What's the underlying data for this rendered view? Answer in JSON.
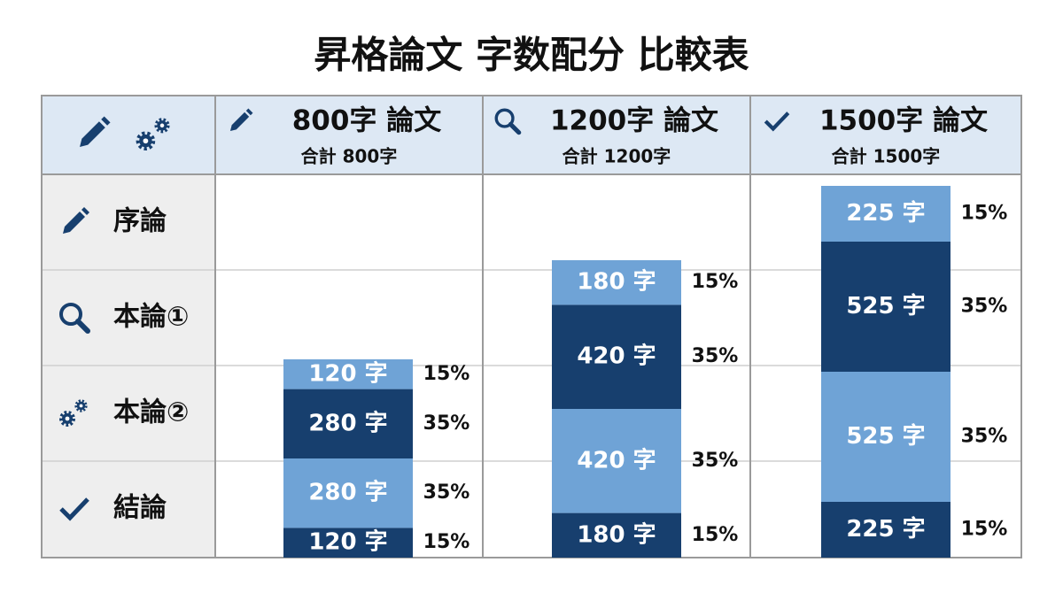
{
  "chart_data": {
    "type": "stacked-bar",
    "title": "昇格論文 字数配分 比較表",
    "categories": [
      "800字 論文",
      "1200字 論文",
      "1500字 論文"
    ],
    "category_subtitles": [
      "合計 800字",
      "合計 1200字",
      "合計 1500字"
    ],
    "series": [
      {
        "name": "序論",
        "color": "#6fa3d6",
        "values": [
          120,
          180,
          225
        ],
        "value_labels": [
          "120 字",
          "180 字",
          "225 字"
        ],
        "percent_labels": [
          "15%",
          "15%",
          "15%"
        ]
      },
      {
        "name": "本論①",
        "color": "#173f6e",
        "values": [
          280,
          420,
          525
        ],
        "value_labels": [
          "280 字",
          "420 字",
          "525 字"
        ],
        "percent_labels": [
          "35%",
          "35%",
          "35%"
        ]
      },
      {
        "name": "本論②",
        "color": "#6fa3d6",
        "values": [
          280,
          420,
          525
        ],
        "value_labels": [
          "280 字",
          "420 字",
          "525 字"
        ],
        "percent_labels": [
          "35%",
          "35%",
          "35%"
        ]
      },
      {
        "name": "結論",
        "color": "#173f6e",
        "values": [
          120,
          180,
          225
        ],
        "value_labels": [
          "120 字",
          "180 字",
          "225 字"
        ],
        "percent_labels": [
          "15%",
          "15%",
          "15%"
        ]
      }
    ]
  }
}
